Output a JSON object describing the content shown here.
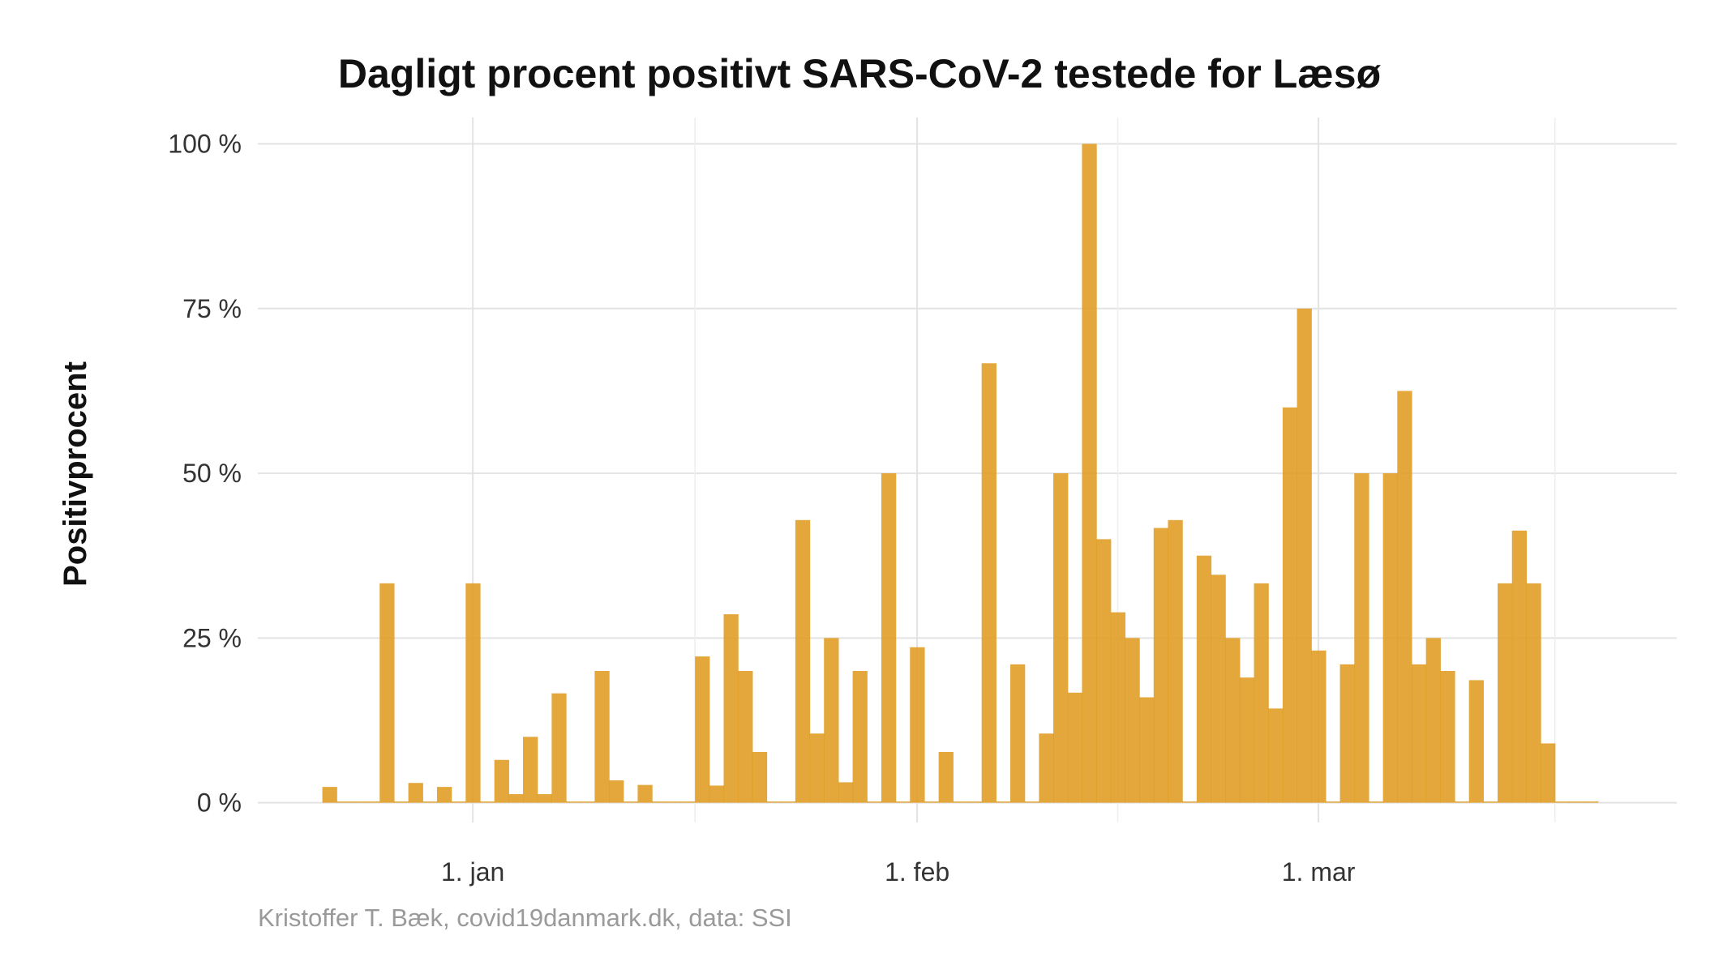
{
  "chart_data": {
    "type": "bar",
    "title": "Dagligt procent positivt SARS-CoV-2 testede for Læsø",
    "xlabel": "",
    "ylabel": "Positivprocent",
    "caption": "Kristoffer T. Bæk, covid19danmark.dk, data: SSI",
    "y_ticks": [
      {
        "value": 0,
        "label": "0 %"
      },
      {
        "value": 25,
        "label": "25 %"
      },
      {
        "value": 50,
        "label": "50 %"
      },
      {
        "value": 75,
        "label": "75 %"
      },
      {
        "value": 100,
        "label": "100 %"
      }
    ],
    "x_ticks": [
      {
        "date": "2021-01-01",
        "label": "1. jan"
      },
      {
        "date": "2021-02-01",
        "label": "1. feb"
      },
      {
        "date": "2021-03-01",
        "label": "1. mar"
      }
    ],
    "xlim": [
      "2020-12-17",
      "2021-03-26"
    ],
    "ylim": [
      -3,
      104
    ],
    "grid": true,
    "bar_color": "#e09b20",
    "series": [
      {
        "values": [
          [
            "2020-12-22",
            2.4
          ],
          [
            "2020-12-23",
            0
          ],
          [
            "2020-12-24",
            0
          ],
          [
            "2020-12-25",
            0
          ],
          [
            "2020-12-26",
            33.3
          ],
          [
            "2020-12-27",
            0
          ],
          [
            "2020-12-28",
            3.0
          ],
          [
            "2020-12-29",
            0
          ],
          [
            "2020-12-30",
            2.4
          ],
          [
            "2020-12-31",
            0
          ],
          [
            "2021-01-01",
            33.3
          ],
          [
            "2021-01-02",
            0
          ],
          [
            "2021-01-03",
            6.5
          ],
          [
            "2021-01-04",
            1.3
          ],
          [
            "2021-01-05",
            10.0
          ],
          [
            "2021-01-06",
            1.3
          ],
          [
            "2021-01-07",
            16.6
          ],
          [
            "2021-01-08",
            0
          ],
          [
            "2021-01-09",
            0
          ],
          [
            "2021-01-10",
            20.0
          ],
          [
            "2021-01-11",
            3.4
          ],
          [
            "2021-01-12",
            0
          ],
          [
            "2021-01-13",
            2.7
          ],
          [
            "2021-01-14",
            0
          ],
          [
            "2021-01-15",
            0
          ],
          [
            "2021-01-16",
            0
          ],
          [
            "2021-01-17",
            22.2
          ],
          [
            "2021-01-18",
            2.6
          ],
          [
            "2021-01-19",
            28.6
          ],
          [
            "2021-01-20",
            20.0
          ],
          [
            "2021-01-21",
            7.7
          ],
          [
            "2021-01-22",
            0
          ],
          [
            "2021-01-23",
            0
          ],
          [
            "2021-01-24",
            42.9
          ],
          [
            "2021-01-25",
            10.5
          ],
          [
            "2021-01-26",
            25.0
          ],
          [
            "2021-01-27",
            3.1
          ],
          [
            "2021-01-28",
            20.0
          ],
          [
            "2021-01-29",
            0
          ],
          [
            "2021-01-30",
            50.0
          ],
          [
            "2021-01-31",
            0
          ],
          [
            "2021-02-01",
            23.6
          ],
          [
            "2021-02-02",
            0
          ],
          [
            "2021-02-03",
            7.7
          ],
          [
            "2021-02-04",
            0
          ],
          [
            "2021-02-05",
            0
          ],
          [
            "2021-02-06",
            66.7
          ],
          [
            "2021-02-07",
            0
          ],
          [
            "2021-02-08",
            21.0
          ],
          [
            "2021-02-09",
            0
          ],
          [
            "2021-02-10",
            10.5
          ],
          [
            "2021-02-11",
            50.0
          ],
          [
            "2021-02-12",
            16.7
          ],
          [
            "2021-02-13",
            100
          ],
          [
            "2021-02-14",
            40.0
          ],
          [
            "2021-02-15",
            28.9
          ],
          [
            "2021-02-16",
            25.0
          ],
          [
            "2021-02-17",
            16.0
          ],
          [
            "2021-02-18",
            41.7
          ],
          [
            "2021-02-19",
            42.9
          ],
          [
            "2021-02-20",
            0
          ],
          [
            "2021-02-21",
            37.5
          ],
          [
            "2021-02-22",
            34.6
          ],
          [
            "2021-02-23",
            25.0
          ],
          [
            "2021-02-24",
            19.0
          ],
          [
            "2021-02-25",
            33.3
          ],
          [
            "2021-02-26",
            14.3
          ],
          [
            "2021-02-27",
            60.0
          ],
          [
            "2021-02-28",
            75.0
          ],
          [
            "2021-03-01",
            23.1
          ],
          [
            "2021-03-02",
            0
          ],
          [
            "2021-03-03",
            21.0
          ],
          [
            "2021-03-04",
            50.0
          ],
          [
            "2021-03-05",
            0
          ],
          [
            "2021-03-06",
            50.0
          ],
          [
            "2021-03-07",
            62.5
          ],
          [
            "2021-03-08",
            21.0
          ],
          [
            "2021-03-09",
            25.0
          ],
          [
            "2021-03-10",
            20.0
          ],
          [
            "2021-03-11",
            0
          ],
          [
            "2021-03-12",
            18.6
          ],
          [
            "2021-03-13",
            0
          ],
          [
            "2021-03-14",
            33.3
          ],
          [
            "2021-03-15",
            41.3
          ],
          [
            "2021-03-16",
            33.3
          ],
          [
            "2021-03-17",
            9.0
          ],
          [
            "2021-03-18",
            0
          ],
          [
            "2021-03-19",
            0
          ],
          [
            "2021-03-20",
            0
          ]
        ]
      }
    ]
  }
}
